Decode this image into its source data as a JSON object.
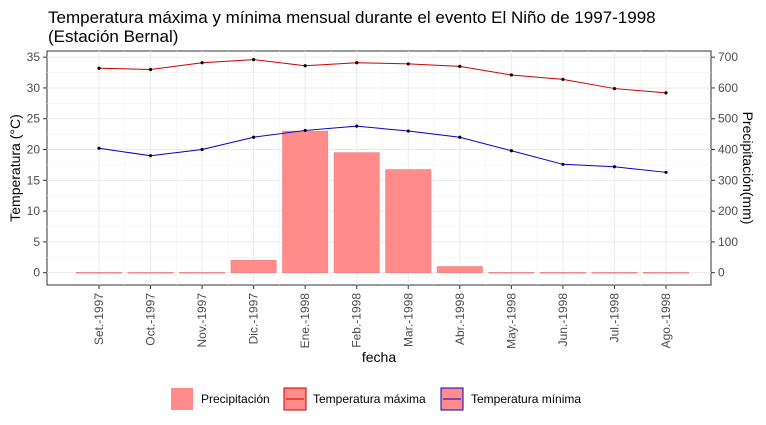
{
  "chart_data": {
    "type": "bar+line",
    "title": "Temperatura máxima y mínima mensual durante el evento El Niño de 1997-1998",
    "subtitle": "(Estación Bernal)",
    "xlabel": "fecha",
    "ylabel": "Temperatura (°C)",
    "ylabel_right": "Precipitación(mm)",
    "categories": [
      "Set.-1997",
      "Oct.-1997",
      "Nov.-1997",
      "Dic.-1997",
      "Ene.-1998",
      "Feb.-1998",
      "Mar.-1998",
      "Abr.-1998",
      "May.-1998",
      "Jun.-1998",
      "Jul.-1998",
      "Ago.-1998"
    ],
    "ylim": [
      -2,
      36
    ],
    "ylim_right": [
      -40,
      720
    ],
    "yticks": [
      0,
      5,
      10,
      15,
      20,
      25,
      30,
      35
    ],
    "yticks_right": [
      0,
      100,
      200,
      300,
      400,
      500,
      600,
      700
    ],
    "grid": true,
    "legend_position": "bottom",
    "series": [
      {
        "name": "Precipitación",
        "kind": "bar",
        "axis": "right",
        "color": "#ff8b8b",
        "values": [
          1,
          1,
          1,
          40,
          460,
          390,
          335,
          20,
          1,
          1,
          1,
          1
        ]
      },
      {
        "name": "Temperatura máxima",
        "kind": "line",
        "axis": "left",
        "color": "#cc0000",
        "values": [
          33.2,
          33.0,
          34.1,
          34.6,
          33.6,
          34.1,
          33.9,
          33.5,
          32.1,
          31.4,
          29.9,
          29.2
        ]
      },
      {
        "name": "Temperatura mínima",
        "kind": "line",
        "axis": "left",
        "color": "#0000cc",
        "values": [
          20.2,
          19.0,
          20.0,
          22.0,
          23.1,
          23.8,
          23.0,
          22.0,
          19.8,
          17.6,
          17.2,
          16.3
        ]
      }
    ]
  }
}
